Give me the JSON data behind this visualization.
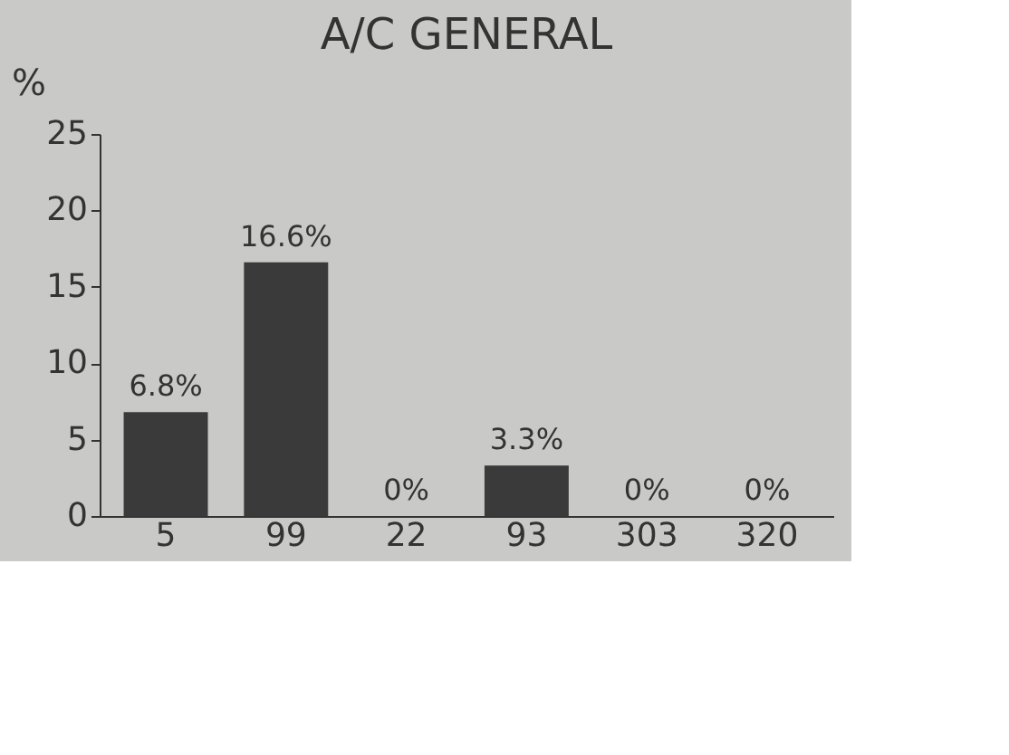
{
  "chart_data": {
    "type": "bar",
    "title": "A/C GENERAL",
    "ylabel": "%",
    "categories": [
      "5",
      "99",
      "22",
      "93",
      "303",
      "320"
    ],
    "values": [
      6.8,
      16.6,
      0,
      3.3,
      0,
      0
    ],
    "value_labels": [
      "6.8%",
      "16.6%",
      "0%",
      "3.3%",
      "0%",
      "0%"
    ],
    "color": "#3a3a3a",
    "ylim": [
      0,
      25
    ],
    "yticks": [
      0,
      5,
      10,
      15,
      20,
      25
    ],
    "grid": false
  }
}
